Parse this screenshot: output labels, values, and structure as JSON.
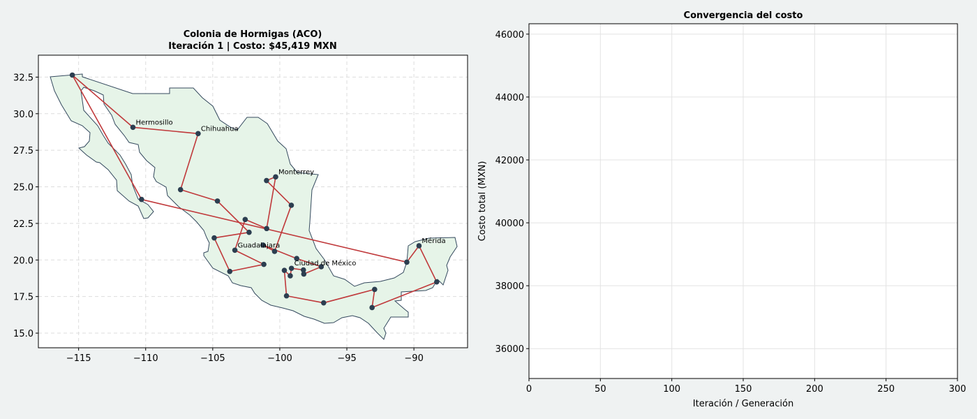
{
  "chart_data": [
    {
      "type": "scatter",
      "title_line1": "Colonia de Hormigas (ACO)",
      "title_line2": "Iteración 1 | Costo: $45,419 MXN",
      "xlabel": "",
      "ylabel": "",
      "xlim": [
        -118.0,
        -86.0
      ],
      "ylim": [
        14.0,
        34.0
      ],
      "xticks": [
        -115,
        -110,
        -105,
        -100,
        -95,
        -90
      ],
      "xtick_labels": [
        "−115",
        "−110",
        "−105",
        "−100",
        "−95",
        "−90"
      ],
      "yticks": [
        15.0,
        17.5,
        20.0,
        22.5,
        25.0,
        27.5,
        30.0,
        32.5
      ],
      "ytick_labels": [
        "15.0",
        "17.5",
        "20.0",
        "22.5",
        "25.0",
        "27.5",
        "30.0",
        "32.5"
      ],
      "grid": true,
      "colors": {
        "route": "#c0393b",
        "city": "#2c3e50",
        "land": "#e6f4e8",
        "border": "#34495e"
      },
      "route_cities": [
        {
          "lon": -115.47,
          "lat": 32.64
        },
        {
          "lon": -110.95,
          "lat": 29.07,
          "label": "Hermosillo"
        },
        {
          "lon": -106.09,
          "lat": 28.64,
          "label": "Chihuahua"
        },
        {
          "lon": -107.4,
          "lat": 24.81
        },
        {
          "lon": -104.65,
          "lat": 24.03
        },
        {
          "lon": -102.29,
          "lat": 21.89
        },
        {
          "lon": -104.89,
          "lat": 21.51
        },
        {
          "lon": -103.73,
          "lat": 19.22
        },
        {
          "lon": -101.19,
          "lat": 19.7
        },
        {
          "lon": -103.35,
          "lat": 20.67,
          "label": "Guadalajara"
        },
        {
          "lon": -102.58,
          "lat": 22.77
        },
        {
          "lon": -100.98,
          "lat": 22.15
        },
        {
          "lon": -100.31,
          "lat": 25.68,
          "label": "Monterrey"
        },
        {
          "lon": -100.99,
          "lat": 25.43
        },
        {
          "lon": -99.14,
          "lat": 23.74
        },
        {
          "lon": -100.39,
          "lat": 20.59
        },
        {
          "lon": -101.25,
          "lat": 21.02
        },
        {
          "lon": -98.74,
          "lat": 20.1
        },
        {
          "lon": -96.91,
          "lat": 19.54
        },
        {
          "lon": -98.21,
          "lat": 19.04
        },
        {
          "lon": -98.24,
          "lat": 19.32
        },
        {
          "lon": -99.13,
          "lat": 19.43,
          "label": "Ciudad de México"
        },
        {
          "lon": -99.22,
          "lat": 18.92
        },
        {
          "lon": -99.66,
          "lat": 19.29
        },
        {
          "lon": -99.5,
          "lat": 17.55
        },
        {
          "lon": -96.73,
          "lat": 17.07
        },
        {
          "lon": -92.93,
          "lat": 17.99
        },
        {
          "lon": -93.12,
          "lat": 16.75
        },
        {
          "lon": -88.3,
          "lat": 18.5
        },
        {
          "lon": -89.62,
          "lat": 20.97,
          "label": "Mérida"
        },
        {
          "lon": -90.53,
          "lat": 19.85
        },
        {
          "lon": -110.31,
          "lat": 24.14
        }
      ]
    },
    {
      "type": "line",
      "title": "Convergencia del costo",
      "xlabel": "Iteración / Generación",
      "ylabel": "Costo total (MXN)",
      "xlim": [
        0,
        300
      ],
      "ylim": [
        35050,
        46330
      ],
      "xticks": [
        0,
        50,
        100,
        150,
        200,
        250,
        300
      ],
      "yticks": [
        36000,
        38000,
        40000,
        42000,
        44000,
        46000
      ],
      "grid": true,
      "series": []
    }
  ]
}
